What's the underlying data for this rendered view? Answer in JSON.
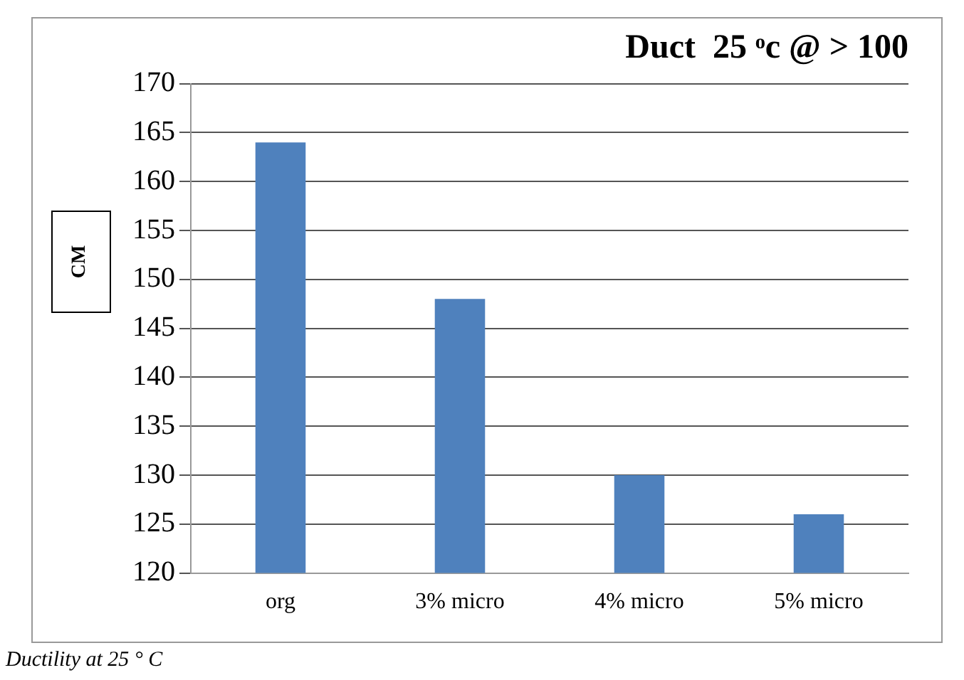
{
  "chart_data": {
    "type": "bar",
    "title": "Duct  25 ͦc @ > 100",
    "ylabel": "CM",
    "categories": [
      "org",
      "3% micro",
      "4% micro",
      "5% micro"
    ],
    "values": [
      164,
      148,
      130,
      126
    ],
    "color": "#4f81bd",
    "ylim": [
      120,
      170
    ],
    "yticks": [
      120,
      125,
      130,
      135,
      140,
      145,
      150,
      155,
      160,
      165,
      170
    ],
    "grid": "y",
    "legend": false,
    "annotations": [
      "Ductility at 25 ° C"
    ]
  }
}
